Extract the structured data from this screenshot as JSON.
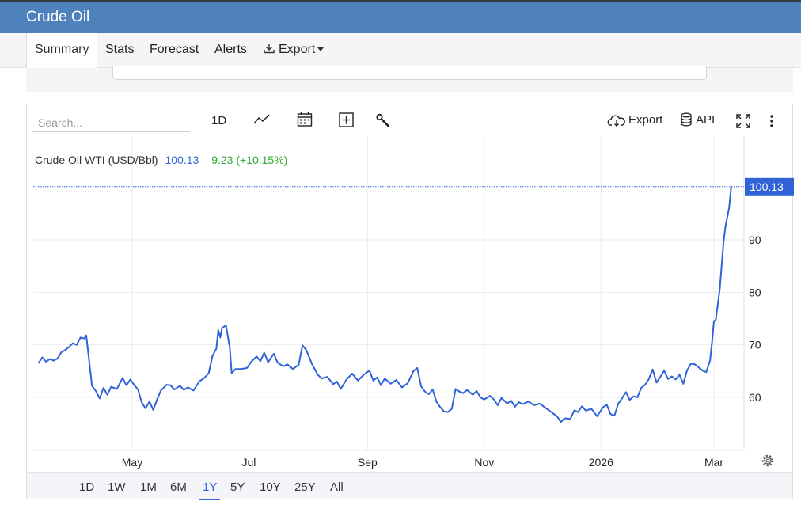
{
  "header": {
    "title": "Crude Oil"
  },
  "tabs": [
    {
      "label": "Summary",
      "active": true
    },
    {
      "label": "Stats"
    },
    {
      "label": "Forecast"
    },
    {
      "label": "Alerts"
    },
    {
      "label": "Export"
    }
  ],
  "toolbar": {
    "search_placeholder": "Search...",
    "interval": "1D",
    "export_label": "Export",
    "api_label": "API"
  },
  "ranges": {
    "items": [
      "1D",
      "1W",
      "1M",
      "6M",
      "1Y",
      "5Y",
      "10Y",
      "25Y",
      "All"
    ],
    "active": "1Y"
  },
  "legend": {
    "name": "Crude Oil WTI (USD/Bbl)",
    "last": "100.13",
    "change": "9.23 (+10.15%)"
  },
  "colors": {
    "line": "#2f63d6",
    "header": "#4f81bd",
    "positive": "#2fa82f",
    "last_tag": "#2f63d6"
  },
  "chart_data": {
    "type": "line",
    "title": "Crude Oil WTI (USD/Bbl)",
    "xlabel": "",
    "ylabel": "",
    "x_range": [
      "2025-03-13",
      "2026-03-13"
    ],
    "x_ticks": [
      {
        "date": "2025-05-01",
        "label": "May"
      },
      {
        "date": "2025-07-01",
        "label": "Jul"
      },
      {
        "date": "2025-09-01",
        "label": "Sep"
      },
      {
        "date": "2025-11-01",
        "label": "Nov"
      },
      {
        "date": "2026-01-01",
        "label": "2026"
      },
      {
        "date": "2026-03-01",
        "label": "Mar"
      }
    ],
    "y_ticks": [
      60,
      70,
      80,
      90
    ],
    "ylim": [
      50,
      110
    ],
    "grid": true,
    "last_value": 100.13,
    "series": [
      {
        "name": "Crude Oil WTI (USD/Bbl)",
        "points": [
          [
            "2025-03-13",
            66.5
          ],
          [
            "2025-03-15",
            67.6
          ],
          [
            "2025-03-17",
            66.8
          ],
          [
            "2025-03-19",
            67.3
          ],
          [
            "2025-03-21",
            67.0
          ],
          [
            "2025-03-23",
            67.4
          ],
          [
            "2025-03-25",
            68.6
          ],
          [
            "2025-03-27",
            69.0
          ],
          [
            "2025-03-29",
            69.6
          ],
          [
            "2025-03-31",
            70.3
          ],
          [
            "2025-04-02",
            70.0
          ],
          [
            "2025-04-04",
            71.4
          ],
          [
            "2025-04-06",
            71.2
          ],
          [
            "2025-04-07",
            71.8
          ],
          [
            "2025-04-10",
            62.2
          ],
          [
            "2025-04-12",
            61.2
          ],
          [
            "2025-04-14",
            59.8
          ],
          [
            "2025-04-16",
            61.8
          ],
          [
            "2025-04-18",
            60.5
          ],
          [
            "2025-04-20",
            62.0
          ],
          [
            "2025-04-23",
            61.6
          ],
          [
            "2025-04-26",
            63.7
          ],
          [
            "2025-04-28",
            62.3
          ],
          [
            "2025-04-30",
            63.4
          ],
          [
            "2025-05-02",
            62.4
          ],
          [
            "2025-05-04",
            61.5
          ],
          [
            "2025-05-06",
            59.0
          ],
          [
            "2025-05-08",
            57.9
          ],
          [
            "2025-05-10",
            59.2
          ],
          [
            "2025-05-12",
            57.6
          ],
          [
            "2025-05-14",
            59.6
          ],
          [
            "2025-05-16",
            61.3
          ],
          [
            "2025-05-19",
            62.4
          ],
          [
            "2025-05-21",
            62.3
          ],
          [
            "2025-05-23",
            61.5
          ],
          [
            "2025-05-26",
            62.2
          ],
          [
            "2025-05-28",
            61.4
          ],
          [
            "2025-05-30",
            61.9
          ],
          [
            "2025-06-02",
            61.3
          ],
          [
            "2025-06-05",
            63.0
          ],
          [
            "2025-06-08",
            63.8
          ],
          [
            "2025-06-10",
            64.6
          ],
          [
            "2025-06-12",
            67.9
          ],
          [
            "2025-06-14",
            69.3
          ],
          [
            "2025-06-15",
            72.8
          ],
          [
            "2025-06-16",
            71.4
          ],
          [
            "2025-06-17",
            73.2
          ],
          [
            "2025-06-19",
            73.7
          ],
          [
            "2025-06-21",
            69.5
          ],
          [
            "2025-06-22",
            64.6
          ],
          [
            "2025-06-24",
            65.4
          ],
          [
            "2025-06-27",
            65.4
          ],
          [
            "2025-06-30",
            65.6
          ],
          [
            "2025-07-02",
            66.7
          ],
          [
            "2025-07-05",
            67.8
          ],
          [
            "2025-07-07",
            66.9
          ],
          [
            "2025-07-09",
            68.5
          ],
          [
            "2025-07-11",
            66.7
          ],
          [
            "2025-07-14",
            68.3
          ],
          [
            "2025-07-16",
            66.6
          ],
          [
            "2025-07-19",
            65.9
          ],
          [
            "2025-07-21",
            66.3
          ],
          [
            "2025-07-24",
            65.4
          ],
          [
            "2025-07-27",
            66.2
          ],
          [
            "2025-07-29",
            69.9
          ],
          [
            "2025-07-31",
            69.0
          ],
          [
            "2025-08-03",
            66.3
          ],
          [
            "2025-08-06",
            64.3
          ],
          [
            "2025-08-08",
            63.6
          ],
          [
            "2025-08-11",
            63.9
          ],
          [
            "2025-08-14",
            62.5
          ],
          [
            "2025-08-16",
            63.0
          ],
          [
            "2025-08-18",
            61.6
          ],
          [
            "2025-08-21",
            63.4
          ],
          [
            "2025-08-24",
            64.5
          ],
          [
            "2025-08-27",
            63.2
          ],
          [
            "2025-08-30",
            64.3
          ],
          [
            "2025-09-02",
            65.1
          ],
          [
            "2025-09-04",
            63.2
          ],
          [
            "2025-09-06",
            63.8
          ],
          [
            "2025-09-08",
            62.3
          ],
          [
            "2025-09-10",
            63.6
          ],
          [
            "2025-09-13",
            62.6
          ],
          [
            "2025-09-16",
            63.3
          ],
          [
            "2025-09-19",
            61.9
          ],
          [
            "2025-09-22",
            62.7
          ],
          [
            "2025-09-25",
            65.0
          ],
          [
            "2025-09-27",
            65.6
          ],
          [
            "2025-09-29",
            62.1
          ],
          [
            "2025-10-01",
            61.1
          ],
          [
            "2025-10-03",
            60.6
          ],
          [
            "2025-10-05",
            61.5
          ],
          [
            "2025-10-07",
            59.2
          ],
          [
            "2025-10-09",
            58.1
          ],
          [
            "2025-10-11",
            57.3
          ],
          [
            "2025-10-13",
            57.2
          ],
          [
            "2025-10-15",
            57.8
          ],
          [
            "2025-10-17",
            61.6
          ],
          [
            "2025-10-19",
            61.1
          ],
          [
            "2025-10-21",
            60.8
          ],
          [
            "2025-10-23",
            61.4
          ],
          [
            "2025-10-26",
            60.5
          ],
          [
            "2025-10-28",
            61.2
          ],
          [
            "2025-10-30",
            60.0
          ],
          [
            "2025-11-01",
            59.6
          ],
          [
            "2025-11-04",
            60.3
          ],
          [
            "2025-11-06",
            59.6
          ],
          [
            "2025-11-08",
            58.5
          ],
          [
            "2025-11-10",
            59.9
          ],
          [
            "2025-11-13",
            58.8
          ],
          [
            "2025-11-15",
            59.4
          ],
          [
            "2025-11-17",
            58.2
          ],
          [
            "2025-11-19",
            59.1
          ],
          [
            "2025-11-21",
            58.7
          ],
          [
            "2025-11-24",
            59.2
          ],
          [
            "2025-11-27",
            58.5
          ],
          [
            "2025-11-30",
            58.8
          ],
          [
            "2025-12-03",
            58.0
          ],
          [
            "2025-12-06",
            57.2
          ],
          [
            "2025-12-09",
            56.4
          ],
          [
            "2025-12-11",
            55.3
          ],
          [
            "2025-12-13",
            56.0
          ],
          [
            "2025-12-16",
            55.9
          ],
          [
            "2025-12-18",
            57.5
          ],
          [
            "2025-12-20",
            57.2
          ],
          [
            "2025-12-22",
            58.3
          ],
          [
            "2025-12-24",
            57.5
          ],
          [
            "2025-12-27",
            57.8
          ],
          [
            "2025-12-30",
            56.4
          ],
          [
            "2026-01-02",
            58.1
          ],
          [
            "2026-01-04",
            58.6
          ],
          [
            "2026-01-06",
            56.8
          ],
          [
            "2026-01-08",
            56.5
          ],
          [
            "2026-01-10",
            58.8
          ],
          [
            "2026-01-12",
            59.8
          ],
          [
            "2026-01-14",
            61.0
          ],
          [
            "2026-01-16",
            59.5
          ],
          [
            "2026-01-18",
            60.2
          ],
          [
            "2026-01-20",
            60.0
          ],
          [
            "2026-01-22",
            61.8
          ],
          [
            "2026-01-24",
            62.4
          ],
          [
            "2026-01-26",
            63.5
          ],
          [
            "2026-01-28",
            65.3
          ],
          [
            "2026-01-30",
            62.8
          ],
          [
            "2026-02-01",
            63.9
          ],
          [
            "2026-02-03",
            65.1
          ],
          [
            "2026-02-05",
            63.5
          ],
          [
            "2026-02-07",
            64.0
          ],
          [
            "2026-02-09",
            63.4
          ],
          [
            "2026-02-11",
            64.3
          ],
          [
            "2026-02-13",
            62.6
          ],
          [
            "2026-02-15",
            65.2
          ],
          [
            "2026-02-17",
            66.4
          ],
          [
            "2026-02-19",
            66.3
          ],
          [
            "2026-02-21",
            65.7
          ],
          [
            "2026-02-23",
            65.1
          ],
          [
            "2026-02-25",
            64.8
          ],
          [
            "2026-02-27",
            67.1
          ],
          [
            "2026-02-28",
            70.5
          ],
          [
            "2026-03-01",
            74.5
          ],
          [
            "2026-03-02",
            74.8
          ],
          [
            "2026-03-04",
            80.5
          ],
          [
            "2026-03-06",
            89.5
          ],
          [
            "2026-03-07",
            92.5
          ],
          [
            "2026-03-09",
            96.2
          ],
          [
            "2026-03-10",
            100.13
          ]
        ]
      }
    ]
  }
}
